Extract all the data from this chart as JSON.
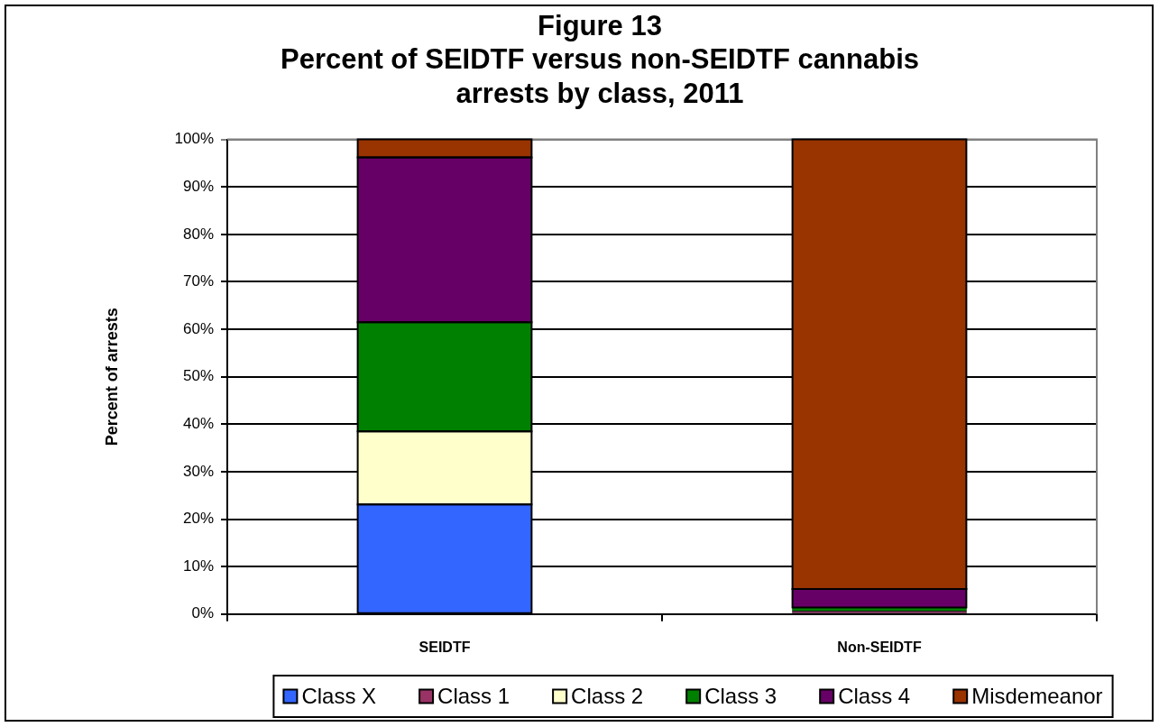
{
  "chart_data": {
    "type": "bar",
    "title": "Figure 13",
    "subtitle": "Percent of SEIDTF versus non-SEIDTF cannabis arrests by class, 2011",
    "ylabel": "Percent of arrests",
    "categories": [
      "SEIDTF",
      "Non-SEIDTF"
    ],
    "stacked": true,
    "series": [
      {
        "name": "Class X",
        "color": "#3366ff",
        "values": [
          23.1,
          0
        ]
      },
      {
        "name": "Class 1",
        "color": "#993366",
        "values": [
          0,
          0.6
        ]
      },
      {
        "name": "Class 2",
        "color": "#ffffcc",
        "values": [
          15.4,
          0
        ]
      },
      {
        "name": "Class 3",
        "color": "#008000",
        "values": [
          23.0,
          0.8
        ]
      },
      {
        "name": "Class 4",
        "color": "#660066",
        "values": [
          34.7,
          3.9
        ]
      },
      {
        "name": "Misdemeanor",
        "color": "#993300",
        "values": [
          3.8,
          94.7
        ]
      }
    ],
    "ylim": [
      0,
      100
    ],
    "yticks": [
      {
        "value": 0,
        "label": "0%"
      },
      {
        "value": 10,
        "label": "10%"
      },
      {
        "value": 20,
        "label": "20%"
      },
      {
        "value": 30,
        "label": "30%"
      },
      {
        "value": 40,
        "label": "40%"
      },
      {
        "value": 50,
        "label": "50%"
      },
      {
        "value": 60,
        "label": "60%"
      },
      {
        "value": 70,
        "label": "70%"
      },
      {
        "value": 80,
        "label": "80%"
      },
      {
        "value": 90,
        "label": "90%"
      },
      {
        "value": 100,
        "label": "100%"
      }
    ],
    "grid": "y",
    "legend": "bottom"
  }
}
